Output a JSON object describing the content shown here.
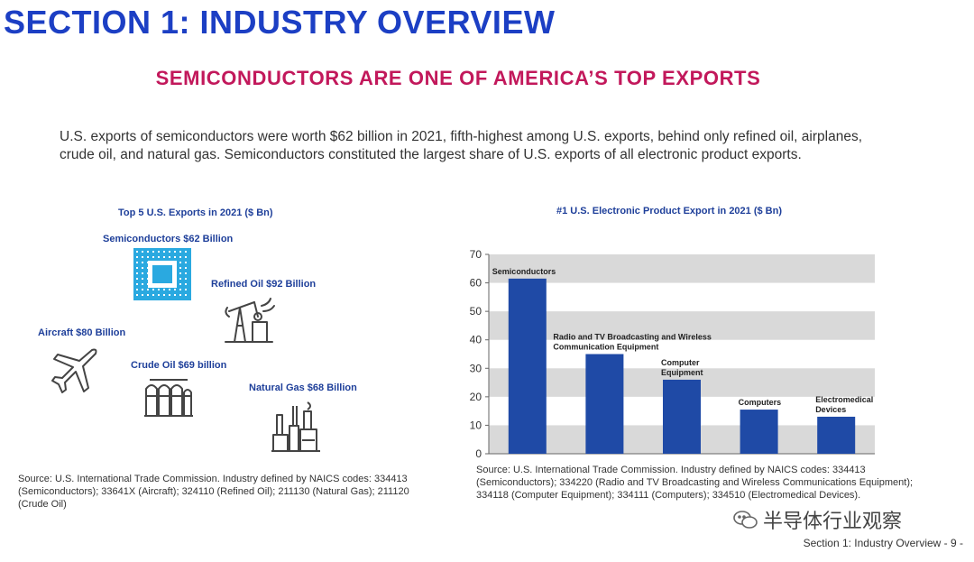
{
  "header": {
    "section_title": "SECTION 1: INDUSTRY OVERVIEW",
    "subtitle": "SEMICONDUCTORS ARE ONE OF AMERICA’S TOP EXPORTS"
  },
  "intro": "U.S. exports of semiconductors were worth $62 billion in 2021, fifth-highest among U.S. exports, behind only refined oil, airplanes, crude oil, and natural gas. Semiconductors constituted the largest share of U.S. exports of all electronic product exports.",
  "left_panel": {
    "title": "Top 5 U.S. Exports in 2021 ($ Bn)",
    "items": [
      {
        "label": "Semiconductors $62 Billion",
        "icon": "chip-icon"
      },
      {
        "label": "Refined Oil $92 Billion",
        "icon": "oil-pump-icon"
      },
      {
        "label": "Aircraft $80 Billion",
        "icon": "airplane-icon"
      },
      {
        "label": "Crude Oil $69 billion",
        "icon": "oil-tanks-icon"
      },
      {
        "label": "Natural Gas $68 Billion",
        "icon": "gas-plant-icon"
      }
    ],
    "source": "Source: U.S. International Trade Commission. Industry defined by NAICS codes: 334413 (Semiconductors); 33641X (Aircraft); 324110 (Refined Oil); 211130 (Natural Gas); 211120 (Crude Oil)",
    "colors": {
      "chip": "#2aa9e0",
      "label": "#1e3f9a"
    }
  },
  "chart_data": {
    "type": "bar",
    "title": "#1 U.S. Electronic Product Export in 2021 ($ Bn)",
    "categories": [
      "Semiconductors",
      "Radio and TV Broadcasting and Wireless Communication Equipment",
      "Computer Equipment",
      "Computers",
      "Electromedical Devices"
    ],
    "category_label_lines": [
      [
        "Semiconductors"
      ],
      [
        "Radio and TV Broadcasting and Wireless",
        "Communication Equipment"
      ],
      [
        "Computer",
        "Equipment"
      ],
      [
        "Computers"
      ],
      [
        "Electromedical",
        "Devices"
      ]
    ],
    "values": [
      61.5,
      35,
      26,
      15.5,
      13
    ],
    "ylim": [
      0,
      70
    ],
    "yticks": [
      "0",
      "10",
      "20",
      "30",
      "40",
      "50",
      "60",
      "70"
    ],
    "xlabel": "",
    "ylabel": "",
    "grid": "alternating horizontal bands",
    "legend": "none",
    "bar_color": "#1f4aa6",
    "band_color": "#d9d9d9"
  },
  "chart_source": "Source: U.S. International Trade Commission. Industry defined by NAICS codes: 334413 (Semiconductors); 334220 (Radio and TV Broadcasting and Wireless Communications Equipment); 334118 (Computer Equipment); 334111 (Computers); 334510 (Electromedical Devices).",
  "footer": {
    "page_label": "Section 1: Industry Overview - 9 -"
  },
  "watermark": {
    "text": "半导体行业观察",
    "icon": "wechat-icon"
  }
}
